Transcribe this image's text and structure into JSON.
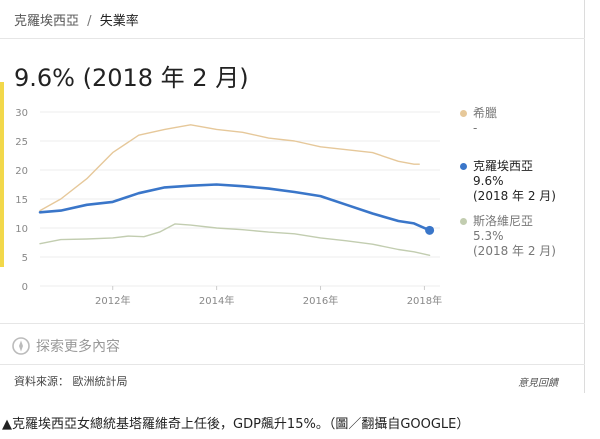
{
  "breadcrumb": {
    "country": "克羅埃西亞",
    "separator": "/",
    "metric": "失業率"
  },
  "headline": "9.6% (2018 年 2 月)",
  "colors": {
    "greece": "#e6c89a",
    "croatia": "#3a76c9",
    "slovenia": "#c2cdb0",
    "accent": "#f2d84a"
  },
  "legend": [
    {
      "name": "希臘",
      "value": "-",
      "date": ""
    },
    {
      "name": "克羅埃西亞",
      "value": "9.6%",
      "date": "(2018 年 2 月)"
    },
    {
      "name": "斯洛維尼亞",
      "value": "5.3%",
      "date": "(2018 年 2 月)"
    }
  ],
  "chart_data": {
    "type": "line",
    "y_ticks": [
      "30",
      "25",
      "20",
      "15",
      "10",
      "5",
      "0"
    ],
    "x_ticks": [
      "2012年",
      "2014年",
      "2016年",
      "2018年"
    ],
    "ylim": [
      0,
      30
    ],
    "grid": true,
    "series": [
      {
        "name": "希臘",
        "x": [
          2010.6,
          2011.0,
          2011.5,
          2012.0,
          2012.5,
          2013.0,
          2013.5,
          2014.0,
          2014.5,
          2015.0,
          2015.5,
          2016.0,
          2016.5,
          2017.0,
          2017.5,
          2017.8,
          2017.9
        ],
        "values": [
          13.0,
          15.0,
          18.5,
          23.0,
          26.0,
          27.0,
          27.8,
          27.0,
          26.5,
          25.5,
          25.0,
          24.0,
          23.5,
          23.0,
          21.5,
          21.0,
          21.0
        ]
      },
      {
        "name": "克羅埃西亞",
        "x": [
          2010.6,
          2011.0,
          2011.5,
          2012.0,
          2012.5,
          2013.0,
          2013.5,
          2014.0,
          2014.5,
          2015.0,
          2015.5,
          2016.0,
          2016.5,
          2017.0,
          2017.5,
          2017.8,
          2018.1
        ],
        "values": [
          12.7,
          13.0,
          14.0,
          14.5,
          16.0,
          17.0,
          17.3,
          17.5,
          17.2,
          16.8,
          16.2,
          15.5,
          14.0,
          12.5,
          11.2,
          10.8,
          9.6
        ]
      },
      {
        "name": "斯洛維尼亞",
        "x": [
          2010.6,
          2011.0,
          2011.5,
          2012.0,
          2012.3,
          2012.6,
          2012.9,
          2013.2,
          2013.5,
          2014.0,
          2014.5,
          2015.0,
          2015.5,
          2016.0,
          2016.5,
          2017.0,
          2017.5,
          2017.8,
          2018.1
        ],
        "values": [
          7.3,
          8.0,
          8.1,
          8.3,
          8.6,
          8.5,
          9.3,
          10.7,
          10.5,
          10.0,
          9.7,
          9.3,
          9.0,
          8.3,
          7.8,
          7.2,
          6.3,
          5.9,
          5.3
        ]
      }
    ]
  },
  "more_link": "探索更多內容",
  "source": "資料來源：  歐洲統計局",
  "feedback": "意見回饋",
  "caption": "▲克羅埃西亞女總統基塔羅維奇上任後，GDP飆升15%。（圖／翻攝自GOOGLE）"
}
